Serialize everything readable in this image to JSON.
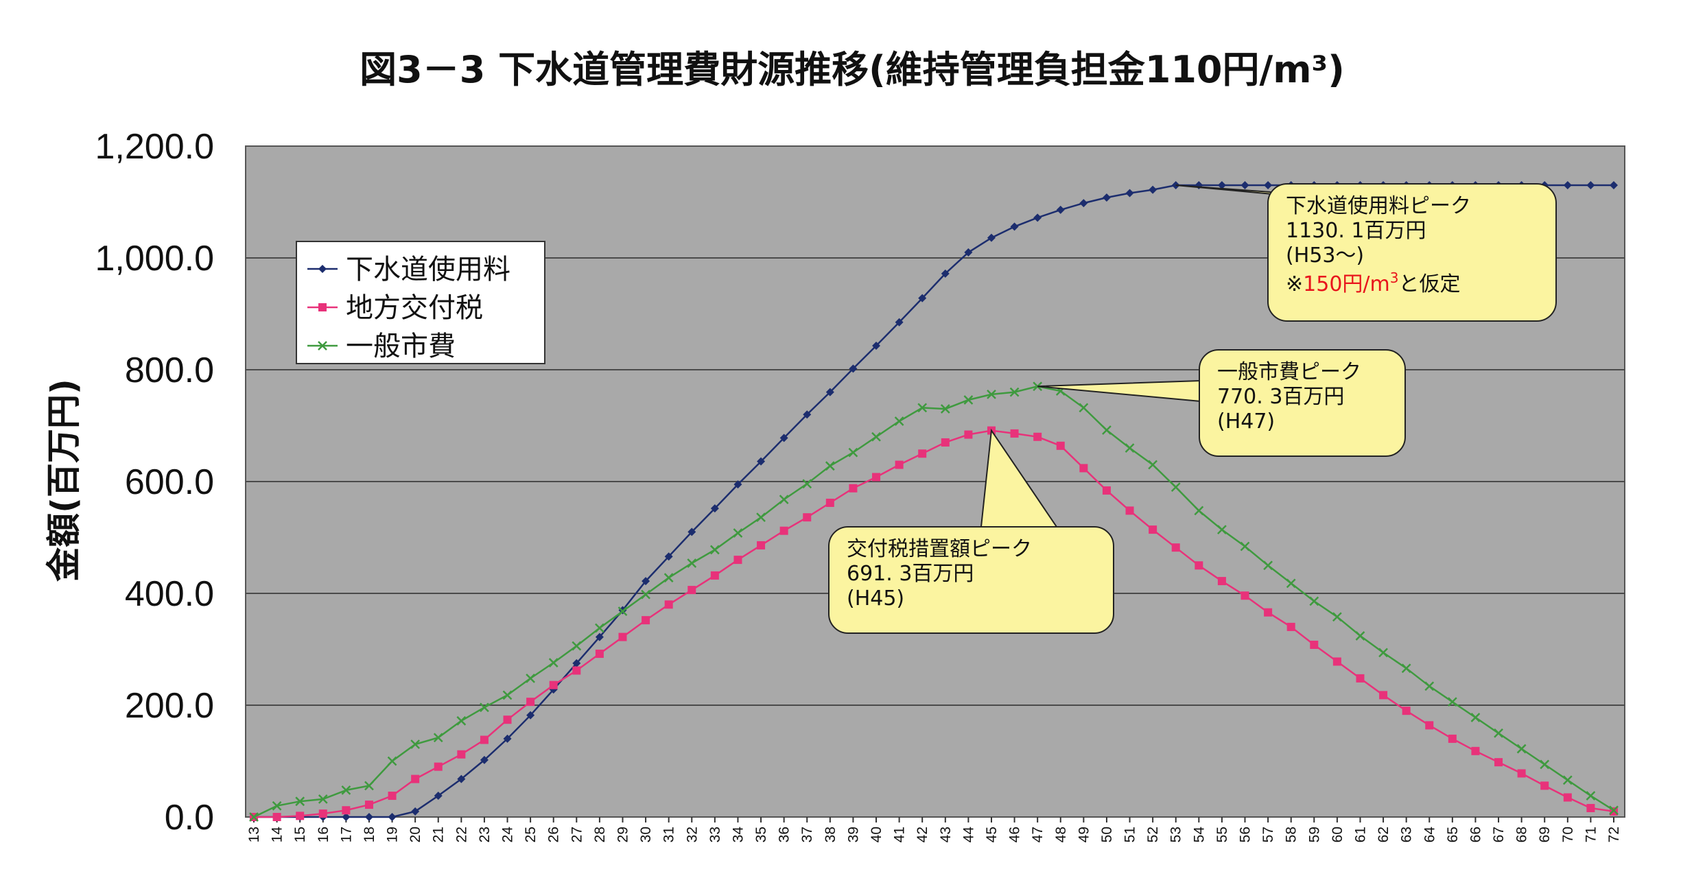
{
  "chart_data": {
    "type": "line",
    "title": "図3－3 下水道管理費財源推移(維持管理負担金110円/m³)",
    "ylabel": "金額(百万円)",
    "xlabel": "",
    "ylim": [
      0,
      1200
    ],
    "yticks": [
      "0.0",
      "200.0",
      "400.0",
      "600.0",
      "800.0",
      "1,000.0",
      "1,200.0"
    ],
    "grid": true,
    "legend_position": "upper-left",
    "x": [
      13,
      14,
      15,
      16,
      17,
      18,
      19,
      20,
      21,
      22,
      23,
      24,
      25,
      26,
      27,
      28,
      29,
      30,
      31,
      32,
      33,
      34,
      35,
      36,
      37,
      38,
      39,
      40,
      41,
      42,
      43,
      44,
      45,
      46,
      47,
      48,
      49,
      50,
      51,
      52,
      53,
      54,
      55,
      56,
      57,
      58,
      59,
      60,
      61,
      62,
      63,
      64,
      65,
      66,
      67,
      68,
      69,
      70,
      71,
      72
    ],
    "series": [
      {
        "name": "下水道使用料",
        "color": "#1c2d6e",
        "marker": "diamond",
        "values": [
          0,
          0,
          0,
          0,
          0,
          0,
          0,
          10,
          38,
          68,
          102,
          140,
          182,
          228,
          275,
          322,
          370,
          422,
          466,
          510,
          552,
          595,
          636,
          678,
          720,
          760,
          802,
          843,
          885,
          928,
          972,
          1010,
          1036,
          1056,
          1072,
          1086,
          1098,
          1108,
          1116,
          1122,
          1130.1,
          1130.1,
          1130.1,
          1130.1,
          1130.1,
          1130.1,
          1130.1,
          1130.1,
          1130.1,
          1130.1,
          1130.1,
          1130.1,
          1130.1,
          1130.1,
          1130.1,
          1130.1,
          1130.1,
          1130.1,
          1130.1,
          1130.1
        ]
      },
      {
        "name": "地方交付税",
        "color": "#e8327a",
        "marker": "square",
        "values": [
          0,
          0,
          2,
          6,
          12,
          22,
          38,
          68,
          90,
          112,
          138,
          174,
          206,
          236,
          262,
          292,
          322,
          352,
          380,
          406,
          432,
          460,
          486,
          512,
          536,
          562,
          588,
          608,
          630,
          650,
          670,
          684,
          691.3,
          686,
          680,
          664,
          624,
          584,
          548,
          514,
          482,
          450,
          422,
          396,
          366,
          340,
          308,
          278,
          248,
          218,
          190,
          164,
          140,
          118,
          98,
          78,
          56,
          35,
          16,
          10
        ]
      },
      {
        "name": "一般市費",
        "color": "#3f9a3f",
        "marker": "x",
        "values": [
          0,
          20,
          28,
          32,
          48,
          56,
          100,
          130,
          142,
          172,
          196,
          218,
          248,
          276,
          306,
          338,
          368,
          398,
          428,
          454,
          478,
          508,
          536,
          568,
          596,
          628,
          652,
          680,
          708,
          732,
          730,
          746,
          756,
          760,
          770.3,
          762,
          732,
          692,
          660,
          630,
          590,
          548,
          514,
          484,
          450,
          418,
          386,
          358,
          324,
          294,
          266,
          234,
          206,
          178,
          150,
          122,
          94,
          66,
          38,
          12
        ]
      }
    ],
    "annotations": [
      {
        "lines": [
          "下水道使用料ピーク",
          "1130. 1百万円",
          "(H53～)"
        ],
        "note_prefix": "※",
        "note_red": "150円/m",
        "note_red_sup": "3",
        "note_suffix": "と仮定",
        "target_x": 53,
        "target_y": 1130.1
      },
      {
        "lines": [
          "一般市費ピーク",
          "770. 3百万円",
          "(H47)"
        ],
        "target_x": 47,
        "target_y": 770.3
      },
      {
        "lines": [
          "交付税措置額ピーク",
          "691. 3百万円",
          "(H45)"
        ],
        "target_x": 45,
        "target_y": 691.3
      }
    ]
  }
}
